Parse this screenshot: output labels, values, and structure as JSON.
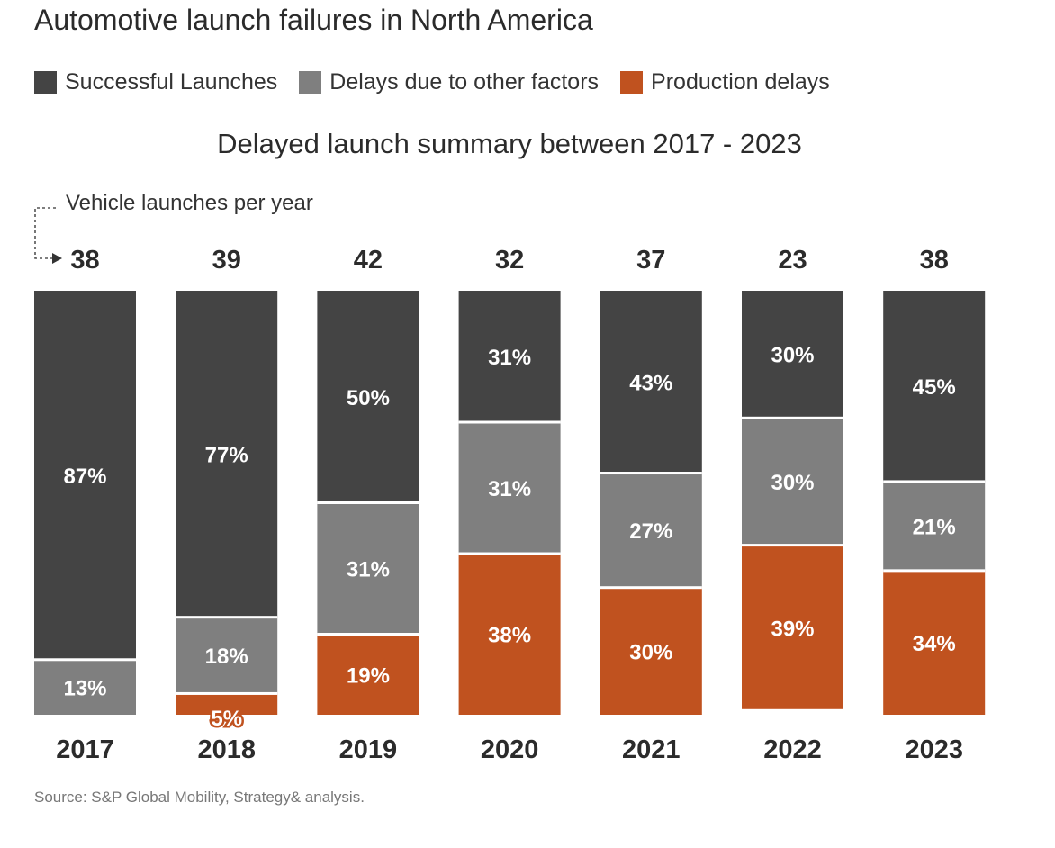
{
  "title": "Automotive launch failures in North America",
  "subtitle": "Delayed launch summary between 2017 - 2023",
  "annotation": "Vehicle launches per year",
  "source": "Source: S&P Global Mobility, Strategy& analysis.",
  "legend": [
    {
      "label": "Successful Launches",
      "color": "#444444"
    },
    {
      "label": "Delays due to other factors",
      "color": "#7f7f7f"
    },
    {
      "label": "Production delays",
      "color": "#c0521f"
    }
  ],
  "chart_data": {
    "type": "bar",
    "stacked": true,
    "normalized": true,
    "categories": [
      "2017",
      "2018",
      "2019",
      "2020",
      "2021",
      "2022",
      "2023"
    ],
    "totals": [
      38,
      39,
      42,
      32,
      37,
      23,
      38
    ],
    "series": [
      {
        "name": "Successful Launches",
        "color": "#444444",
        "values": [
          87,
          77,
          50,
          31,
          43,
          30,
          45
        ]
      },
      {
        "name": "Delays due to other factors",
        "color": "#7f7f7f",
        "values": [
          13,
          18,
          31,
          31,
          27,
          30,
          21
        ]
      },
      {
        "name": "Production delays",
        "color": "#c0521f",
        "values": [
          0,
          5,
          19,
          38,
          30,
          39,
          34
        ]
      }
    ],
    "value_suffix": "%",
    "title": "Delayed launch summary between 2017 - 2023",
    "legend_position": "top-left",
    "grid": false
  }
}
